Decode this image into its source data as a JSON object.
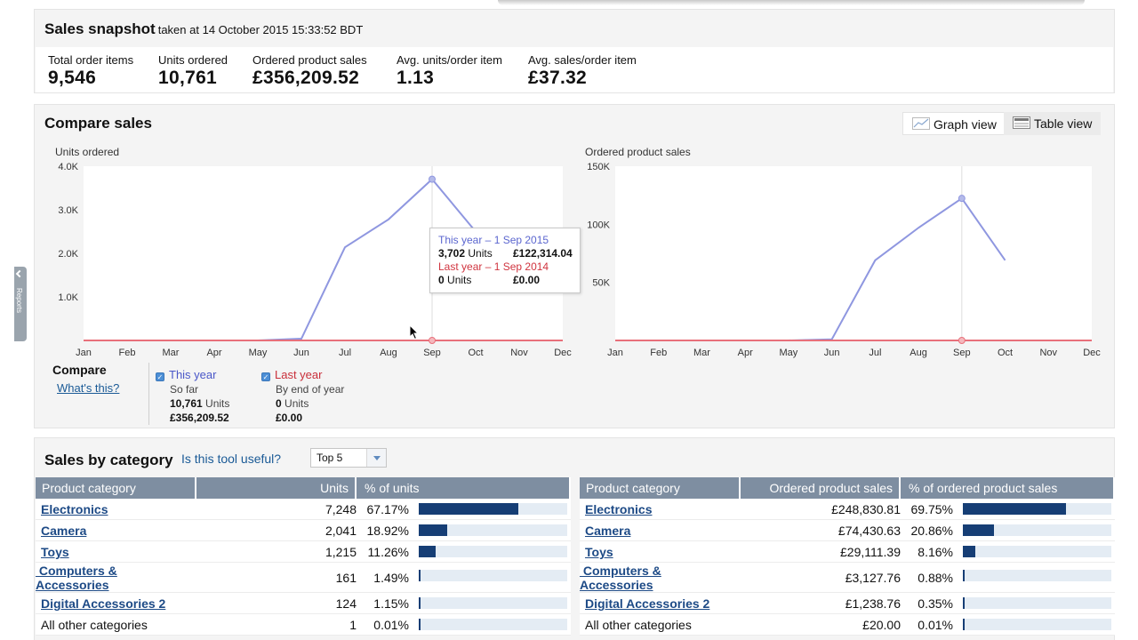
{
  "snapshot": {
    "title": "Sales snapshot",
    "subtitle": "taken at 14 October 2015 15:33:52 BDT",
    "metrics": [
      {
        "label": "Total order items",
        "value": "9,546"
      },
      {
        "label": "Units ordered",
        "value": "10,761"
      },
      {
        "label": "Ordered product sales",
        "value": "£356,209.52"
      },
      {
        "label": "Avg. units/order item",
        "value": "1.13"
      },
      {
        "label": "Avg. sales/order item",
        "value": "£37.32"
      }
    ]
  },
  "compare": {
    "title": "Compare sales",
    "graph_view": "Graph view",
    "table_view": "Table view",
    "compare_label": "Compare",
    "whats_this": "What's this?",
    "this_year": {
      "name": "This year",
      "sub": "So far",
      "units_value": "10,761",
      "units_label": "Units",
      "sales": "£356,209.52"
    },
    "last_year": {
      "name": "Last year",
      "sub": "By end of year",
      "units_value": "0",
      "units_label": "Units",
      "sales": "£0.00"
    },
    "tooltip": {
      "this_year_line": "This year – 1 Sep 2015",
      "this_year_units_value": "3,702",
      "this_year_units_label": "Units",
      "this_year_sales": "£122,314.04",
      "last_year_line": "Last year – 1 Sep 2014",
      "last_year_units_value": "0",
      "last_year_units_label": "Units",
      "last_year_sales": "£0.00"
    },
    "colors": {
      "this_year": "#8f97e0",
      "last_year": "#e8707a"
    }
  },
  "chart_data": [
    {
      "type": "line",
      "title": "Units ordered",
      "x": [
        "Jan",
        "Feb",
        "Mar",
        "Apr",
        "May",
        "Jun",
        "Jul",
        "Aug",
        "Sep",
        "Oct",
        "Nov",
        "Dec"
      ],
      "y_ticks": [
        "1.0K",
        "2.0K",
        "3.0K",
        "4.0K"
      ],
      "ylim": [
        0,
        4000
      ],
      "series": [
        {
          "name": "This year",
          "values": [
            0,
            0,
            0,
            0,
            0,
            40,
            2140,
            2780,
            3702,
            2500,
            null,
            null
          ]
        },
        {
          "name": "Last year",
          "values": [
            0,
            0,
            0,
            0,
            0,
            0,
            0,
            0,
            0,
            0,
            0,
            0
          ]
        }
      ],
      "highlight": "Sep",
      "grid": false
    },
    {
      "type": "line",
      "title": "Ordered product sales",
      "x": [
        "Jan",
        "Feb",
        "Mar",
        "Apr",
        "May",
        "Jun",
        "Jul",
        "Aug",
        "Sep",
        "Oct",
        "Nov",
        "Dec"
      ],
      "y_ticks": [
        "50K",
        "100K",
        "150K"
      ],
      "ylim": [
        0,
        150000
      ],
      "series": [
        {
          "name": "This year",
          "values": [
            0,
            0,
            0,
            0,
            0,
            1000,
            69000,
            97000,
            122314,
            69000,
            null,
            null
          ]
        },
        {
          "name": "Last year",
          "values": [
            0,
            0,
            0,
            0,
            0,
            0,
            0,
            0,
            0,
            0,
            0,
            0
          ]
        }
      ],
      "highlight": "Sep",
      "grid": false
    }
  ],
  "category": {
    "title": "Sales by category",
    "useful_link": "Is this tool useful?",
    "top_select": "Top 5",
    "units_table": {
      "headers": [
        "Product category",
        "Units",
        "% of units"
      ],
      "rows": [
        {
          "name": "Electronics",
          "value": "7,248",
          "pct": "67.17%",
          "frac": 0.6717,
          "link": true
        },
        {
          "name": "Camera",
          "value": "2,041",
          "pct": "18.92%",
          "frac": 0.1892,
          "link": true
        },
        {
          "name": "Toys",
          "value": "1,215",
          "pct": "11.26%",
          "frac": 0.1126,
          "link": true
        },
        {
          "name": "Computers & Accessories",
          "value": "161",
          "pct": "1.49%",
          "frac": 0.0149,
          "link": true
        },
        {
          "name": "Digital Accessories 2",
          "value": "124",
          "pct": "1.15%",
          "frac": 0.0115,
          "link": true
        },
        {
          "name": "All other categories",
          "value": "1",
          "pct": "0.01%",
          "frac": 0.0001,
          "link": false
        }
      ]
    },
    "sales_table": {
      "headers": [
        "Product category",
        "Ordered product sales",
        "% of ordered product sales"
      ],
      "rows": [
        {
          "name": "Electronics",
          "value": "£248,830.81",
          "pct": "69.75%",
          "frac": 0.6975,
          "link": true
        },
        {
          "name": "Camera",
          "value": "£74,430.63",
          "pct": "20.86%",
          "frac": 0.2086,
          "link": true
        },
        {
          "name": "Toys",
          "value": "£29,111.39",
          "pct": "8.16%",
          "frac": 0.0816,
          "link": true
        },
        {
          "name": "Computers & Accessories",
          "value": "£3,127.76",
          "pct": "0.88%",
          "frac": 0.0088,
          "link": true
        },
        {
          "name": "Digital Accessories 2",
          "value": "£1,238.76",
          "pct": "0.35%",
          "frac": 0.0035,
          "link": true
        },
        {
          "name": "All other categories",
          "value": "£20.00",
          "pct": "0.01%",
          "frac": 0.0001,
          "link": false
        }
      ]
    }
  },
  "sidebar_tab": "Reports"
}
